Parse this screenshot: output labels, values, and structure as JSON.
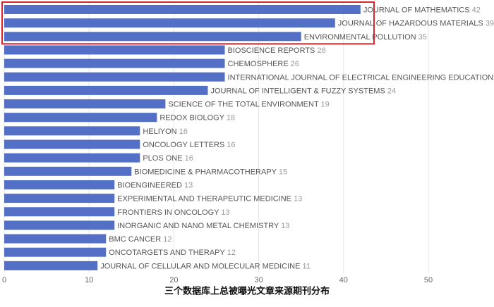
{
  "chart_data": {
    "type": "hbar",
    "title": "三个数据库上总被曝光文章来源期刊分布",
    "categories": [
      "JOURNAL OF MATHEMATICS",
      "JOURNAL OF HAZARDOUS MATERIALS",
      "ENVIRONMENTAL POLLUTION",
      "BIOSCIENCE REPORTS",
      "CHEMOSPHERE",
      "INTERNATIONAL JOURNAL OF ELECTRICAL ENGINEERING EDUCATION",
      "JOURNAL OF INTELLIGENT & FUZZY SYSTEMS",
      "SCIENCE OF THE TOTAL ENVIRONMENT",
      "REDOX BIOLOGY",
      "HELIYON",
      "ONCOLOGY LETTERS",
      "PLOS ONE",
      "BIOMEDICINE & PHARMACOTHERAPY",
      "BIOENGINEERED",
      "EXPERIMENTAL AND THERAPEUTIC MEDICINE",
      "FRONTIERS IN ONCOLOGY",
      "INORGANIC AND NANO METAL CHEMISTRY",
      "BMC CANCER",
      "ONCOTARGETS AND THERAPY",
      "JOURNAL OF CELLULAR AND MOLECULAR MEDICINE"
    ],
    "values": [
      42,
      39,
      35,
      26,
      26,
      26,
      24,
      19,
      18,
      16,
      16,
      16,
      15,
      13,
      13,
      13,
      13,
      12,
      12,
      11
    ],
    "color": "#5470c6",
    "xlim": [
      0,
      50
    ],
    "xticks": [
      0,
      10,
      20,
      30,
      40,
      50
    ],
    "grid": true
  }
}
